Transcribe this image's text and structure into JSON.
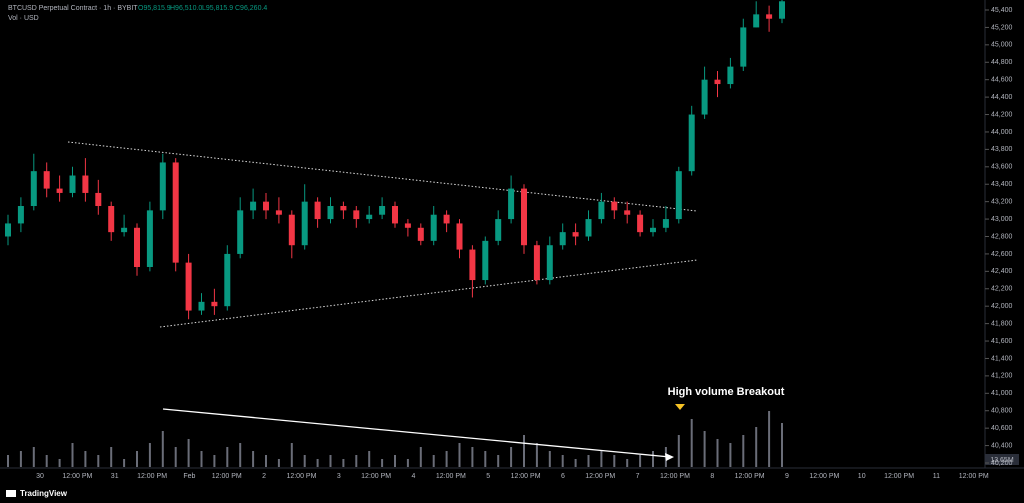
{
  "chart_data": {
    "type": "candlestick",
    "title": "BTCUSD Perpetual Contract · 1h · BYBIT",
    "ohlc_labels": [
      "O95,815.9",
      "H96,510.0",
      "L95,815.9",
      "C96,260.4"
    ],
    "volume_title": "Vol · USD",
    "volume_label": "13.65M",
    "annotation": "High volume Breakout",
    "brand": "TradingView",
    "up_color": "#089981",
    "down_color": "#f23645",
    "volume_color": "#6a6d78",
    "candles": [
      [
        42800,
        43050,
        42700,
        42950
      ],
      [
        42950,
        43250,
        42850,
        43150
      ],
      [
        43150,
        43750,
        43100,
        43550
      ],
      [
        43550,
        43650,
        43250,
        43350
      ],
      [
        43350,
        43500,
        43200,
        43300
      ],
      [
        43300,
        43600,
        43250,
        43500
      ],
      [
        43500,
        43700,
        43200,
        43300
      ],
      [
        43300,
        43450,
        43050,
        43150
      ],
      [
        43150,
        43200,
        42750,
        42850
      ],
      [
        42850,
        43050,
        42800,
        42900
      ],
      [
        42900,
        42950,
        42350,
        42450
      ],
      [
        42450,
        43200,
        42400,
        43100
      ],
      [
        43100,
        43750,
        43000,
        43650
      ],
      [
        43650,
        43700,
        42400,
        42500
      ],
      [
        42500,
        42600,
        41850,
        41950
      ],
      [
        41950,
        42150,
        41900,
        42050
      ],
      [
        42050,
        42200,
        41900,
        42000
      ],
      [
        42000,
        42700,
        41950,
        42600
      ],
      [
        42600,
        43250,
        42550,
        43100
      ],
      [
        43100,
        43350,
        43000,
        43200
      ],
      [
        43200,
        43300,
        43000,
        43100
      ],
      [
        43100,
        43250,
        42950,
        43050
      ],
      [
        43050,
        43100,
        42550,
        42700
      ],
      [
        42700,
        43400,
        42650,
        43200
      ],
      [
        43200,
        43250,
        42900,
        43000
      ],
      [
        43000,
        43250,
        42950,
        43150
      ],
      [
        43150,
        43200,
        43000,
        43100
      ],
      [
        43100,
        43150,
        42900,
        43000
      ],
      [
        43000,
        43150,
        42950,
        43050
      ],
      [
        43050,
        43250,
        43000,
        43150
      ],
      [
        43150,
        43200,
        42900,
        42950
      ],
      [
        42950,
        43000,
        42800,
        42900
      ],
      [
        42900,
        42950,
        42700,
        42750
      ],
      [
        42750,
        43150,
        42700,
        43050
      ],
      [
        43050,
        43100,
        42850,
        42950
      ],
      [
        42950,
        43000,
        42550,
        42650
      ],
      [
        42650,
        42700,
        42100,
        42300
      ],
      [
        42300,
        42800,
        42250,
        42750
      ],
      [
        42750,
        43100,
        42700,
        43000
      ],
      [
        43000,
        43500,
        42950,
        43350
      ],
      [
        43350,
        43400,
        42600,
        42700
      ],
      [
        42700,
        42750,
        42250,
        42300
      ],
      [
        42300,
        42800,
        42250,
        42700
      ],
      [
        42700,
        42950,
        42650,
        42850
      ],
      [
        42850,
        42950,
        42700,
        42800
      ],
      [
        42800,
        43100,
        42750,
        43000
      ],
      [
        43000,
        43300,
        42950,
        43200
      ],
      [
        43200,
        43250,
        43000,
        43100
      ],
      [
        43100,
        43200,
        42950,
        43050
      ],
      [
        43050,
        43100,
        42800,
        42850
      ],
      [
        42850,
        43000,
        42800,
        42900
      ],
      [
        42900,
        43150,
        42850,
        43000
      ],
      [
        43000,
        43600,
        42950,
        43550
      ],
      [
        43550,
        44300,
        43500,
        44200
      ],
      [
        44200,
        44750,
        44150,
        44600
      ],
      [
        44600,
        44700,
        44400,
        44550
      ],
      [
        44550,
        44850,
        44500,
        44750
      ],
      [
        44750,
        45300,
        44700,
        45200
      ],
      [
        45200,
        45500,
        45200,
        45350
      ],
      [
        45350,
        45450,
        45150,
        45300
      ],
      [
        45300,
        45600,
        45250,
        45500
      ]
    ],
    "volumes": [
      3,
      4,
      5,
      3,
      2,
      6,
      4,
      3,
      5,
      2,
      4,
      6,
      9,
      5,
      7,
      4,
      3,
      5,
      6,
      4,
      3,
      2,
      6,
      3,
      2,
      3,
      2,
      3,
      4,
      2,
      3,
      2,
      5,
      3,
      4,
      6,
      5,
      4,
      3,
      5,
      8,
      6,
      4,
      3,
      2,
      3,
      4,
      3,
      2,
      3,
      4,
      5,
      8,
      12,
      9,
      7,
      6,
      8,
      10,
      14,
      11
    ],
    "volume_lim": [
      0,
      30
    ],
    "ylim": [
      40200,
      45400
    ],
    "yticks": [
      {
        "value": 45400,
        "label": "45,400"
      },
      {
        "value": 45200,
        "label": "45,200"
      },
      {
        "value": 45000,
        "label": "45,000"
      },
      {
        "value": 44800,
        "label": "44,800"
      },
      {
        "value": 44600,
        "label": "44,600"
      },
      {
        "value": 44400,
        "label": "44,400"
      },
      {
        "value": 44200,
        "label": "44,200"
      },
      {
        "value": 44000,
        "label": "44,000"
      },
      {
        "value": 43800,
        "label": "43,800"
      },
      {
        "value": 43600,
        "label": "43,600"
      },
      {
        "value": 43400,
        "label": "43,400"
      },
      {
        "value": 43200,
        "label": "43,200"
      },
      {
        "value": 43000,
        "label": "43,000"
      },
      {
        "value": 42800,
        "label": "42,800"
      },
      {
        "value": 42600,
        "label": "42,600"
      },
      {
        "value": 42400,
        "label": "42,400"
      },
      {
        "value": 42200,
        "label": "42,200"
      },
      {
        "value": 42000,
        "label": "42,000"
      },
      {
        "value": 41800,
        "label": "41,800"
      },
      {
        "value": 41600,
        "label": "41,600"
      },
      {
        "value": 41400,
        "label": "41,400"
      },
      {
        "value": 41200,
        "label": "41,200"
      },
      {
        "value": 41000,
        "label": "41,000"
      },
      {
        "value": 40800,
        "label": "40,800"
      },
      {
        "value": 40600,
        "label": "40,600"
      },
      {
        "value": 40400,
        "label": "40,400"
      },
      {
        "value": 40200,
        "label": "40,200"
      }
    ],
    "xticks": [
      "30",
      "12:00 PM",
      "31",
      "12:00 PM",
      "Feb",
      "12:00 PM",
      "2",
      "12:00 PM",
      "3",
      "12:00 PM",
      "4",
      "12:00 PM",
      "5",
      "12:00 PM",
      "6",
      "12:00 PM",
      "7",
      "12:00 PM",
      "8",
      "12:00 PM",
      "9",
      "12:00 PM",
      "10",
      "12:00 PM",
      "11",
      "12:00 PM"
    ]
  }
}
